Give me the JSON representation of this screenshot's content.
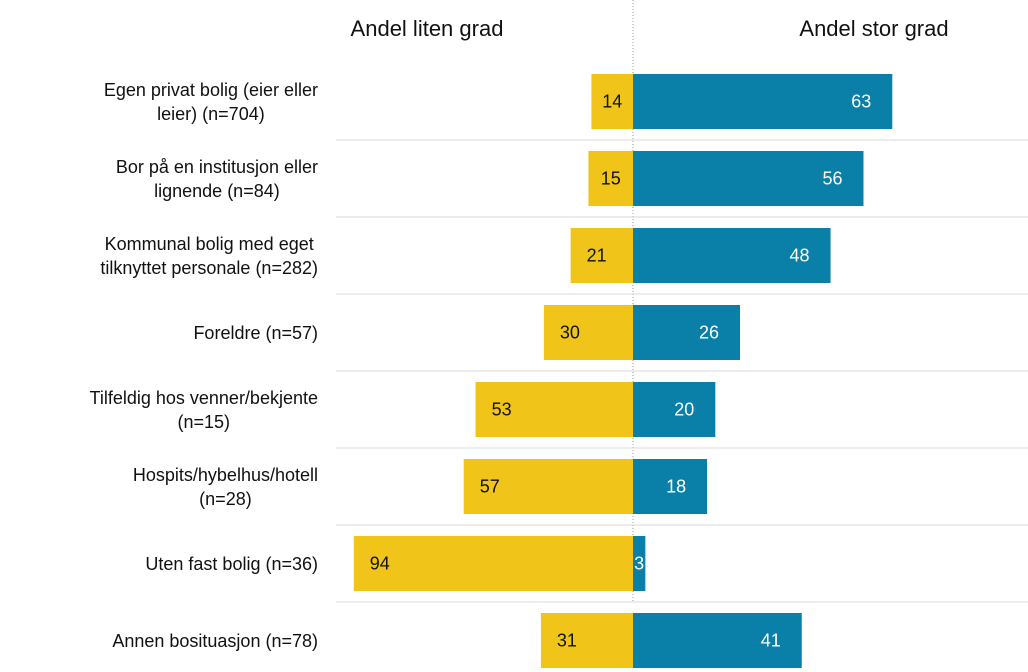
{
  "chart_data": {
    "type": "diverging-bar",
    "categories": [
      "Egen privat bolig (eier eller\nleier) (n=704)",
      "Bor på en institusjon eller\nlignende (n=84)",
      "Kommunal bolig med eget\ntilknyttet personale (n=282)",
      "Foreldre (n=57)",
      "Tilfeldig hos venner/bekjente\n(n=15)",
      "Hospits/hybelhus/hotell\n(n=28)",
      "Uten fast bolig (n=36)",
      "Annen bosituasjon (n=78)"
    ],
    "series": [
      {
        "name": "Andel liten grad",
        "color": "#f0c419",
        "side": "left",
        "xlim": [
          0,
          100
        ],
        "values": [
          14,
          15,
          21,
          30,
          53,
          57,
          94,
          31
        ]
      },
      {
        "name": "Andel stor grad",
        "color": "#0a7fa8",
        "side": "right",
        "xlim": [
          0,
          95
        ],
        "values": [
          63,
          56,
          48,
          26,
          20,
          18,
          3,
          41
        ]
      }
    ],
    "grid": true
  }
}
